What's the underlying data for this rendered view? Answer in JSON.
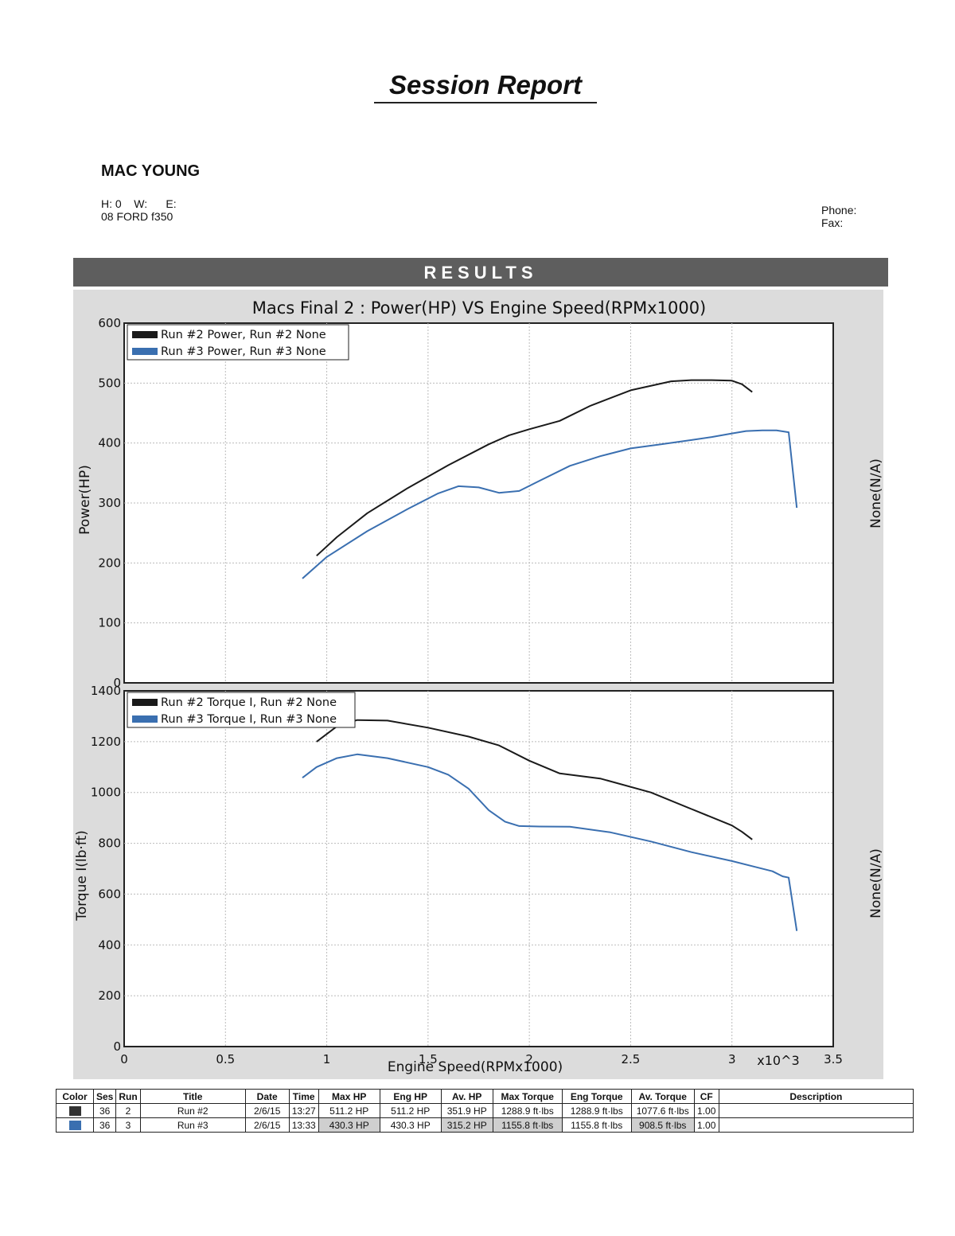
{
  "report": {
    "title": "Session Report",
    "customer": "MAC YOUNG",
    "hw_line": "H: 0    W:      E:",
    "vehicle": "08 FORD f350",
    "phone_label": "Phone:",
    "fax_label": "Fax:",
    "results_label": "RESULTS"
  },
  "colors": {
    "run2": "#1a1a1a",
    "run3": "#3a6fb0"
  },
  "chart_data": [
    {
      "type": "line",
      "title": "Macs Final 2 : Power(HP) VS Engine Speed(RPMx1000)",
      "ylabel": "Power(HP)",
      "y2label": "None(N/A)",
      "xlim": [
        0,
        3.5
      ],
      "ylim": [
        0,
        600
      ],
      "yticks": [
        0,
        100,
        200,
        300,
        400,
        500,
        600
      ],
      "grid": true,
      "legend": "top-left",
      "series": [
        {
          "name": "Run #2 Power, Run #2 None",
          "color": "#1a1a1a",
          "x": [
            0.95,
            1.05,
            1.2,
            1.4,
            1.6,
            1.8,
            1.9,
            2.0,
            2.15,
            2.3,
            2.5,
            2.7,
            2.8,
            2.9,
            3.0,
            3.05,
            3.1
          ],
          "y": [
            212,
            243,
            283,
            325,
            363,
            398,
            413,
            423,
            437,
            462,
            488,
            503,
            505,
            505,
            504,
            498,
            485
          ]
        },
        {
          "name": "Run #3 Power, Run #3 None",
          "color": "#3a6fb0",
          "x": [
            0.88,
            1.0,
            1.2,
            1.4,
            1.55,
            1.65,
            1.75,
            1.85,
            1.95,
            2.05,
            2.2,
            2.35,
            2.5,
            2.65,
            2.8,
            2.9,
            3.0,
            3.07,
            3.15,
            3.22,
            3.28,
            3.32
          ],
          "y": [
            174,
            210,
            253,
            290,
            316,
            328,
            326,
            317,
            320,
            337,
            362,
            378,
            391,
            398,
            405,
            410,
            416,
            420,
            421,
            421,
            418,
            292
          ]
        }
      ]
    },
    {
      "type": "line",
      "ylabel": "Torque I(lb·ft)",
      "y2label": "None(N/A)",
      "xlabel": "Engine Speed(RPMx1000)",
      "xlim": [
        0,
        3.5
      ],
      "ylim": [
        0,
        1400
      ],
      "yticks": [
        0,
        200,
        400,
        600,
        800,
        1000,
        1200,
        1400
      ],
      "xticks": [
        "0",
        "0.5",
        "1",
        "1.5",
        "2",
        "2.5",
        "3",
        "3.5"
      ],
      "x_multiplier": "x10^3",
      "grid": true,
      "legend": "top-left",
      "series": [
        {
          "name": "Run #2 Torque I, Run #2 None",
          "color": "#1a1a1a",
          "x": [
            0.95,
            1.05,
            1.15,
            1.3,
            1.5,
            1.7,
            1.85,
            2.0,
            2.15,
            2.35,
            2.6,
            2.8,
            3.0,
            3.05,
            3.1
          ],
          "y": [
            1200,
            1260,
            1285,
            1283,
            1255,
            1220,
            1185,
            1125,
            1075,
            1055,
            1000,
            935,
            870,
            845,
            815
          ]
        },
        {
          "name": "Run #3 Torque I, Run #3 None",
          "color": "#3a6fb0",
          "x": [
            0.88,
            0.95,
            1.05,
            1.15,
            1.3,
            1.5,
            1.6,
            1.7,
            1.8,
            1.88,
            1.95,
            2.05,
            2.2,
            2.4,
            2.6,
            2.8,
            3.0,
            3.1,
            3.2,
            3.25,
            3.28,
            3.32
          ],
          "y": [
            1058,
            1100,
            1135,
            1150,
            1135,
            1100,
            1070,
            1015,
            930,
            885,
            868,
            866,
            865,
            843,
            807,
            765,
            730,
            710,
            690,
            670,
            665,
            455
          ]
        }
      ]
    }
  ],
  "table": {
    "headers": [
      "Color",
      "Ses",
      "Run",
      "Title",
      "Date",
      "Time",
      "Max HP",
      "Eng HP",
      "Av. HP",
      "Max Torque",
      "Eng Torque",
      "Av. Torque",
      "CF",
      "Description"
    ],
    "rows": [
      {
        "color": "#333333",
        "ses": "36",
        "run": "2",
        "title": "Run #2",
        "date": "2/6/15",
        "time": "13:27",
        "max_hp": "511.2 HP",
        "eng_hp": "511.2 HP",
        "av_hp": "351.9 HP",
        "max_torque": "1288.9 ft·lbs",
        "eng_torque": "1288.9 ft·lbs",
        "av_torque": "1077.6 ft·lbs",
        "cf": "1.00",
        "description": ""
      },
      {
        "color": "#3a6fb0",
        "ses": "36",
        "run": "3",
        "title": "Run #3",
        "date": "2/6/15",
        "time": "13:33",
        "max_hp": "430.3 HP",
        "eng_hp": "430.3 HP",
        "av_hp": "315.2 HP",
        "max_torque": "1155.8 ft·lbs",
        "eng_torque": "1155.8 ft·lbs",
        "av_torque": "908.5 ft·lbs",
        "cf": "1.00",
        "description": ""
      }
    ]
  }
}
